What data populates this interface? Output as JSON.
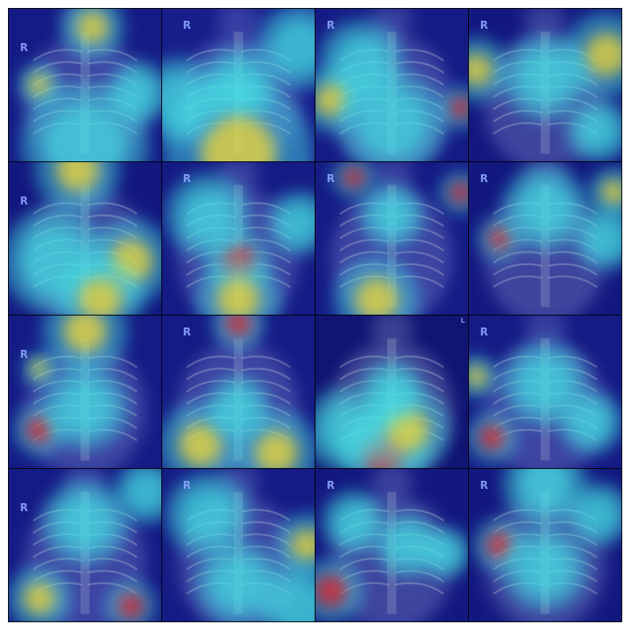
{
  "palette": {
    "background": "#ffffff",
    "grid_border": "#000000",
    "deep_blue": "#0a0a5a",
    "blue": "#2b3bd6",
    "cyan": "#46e6e6",
    "yellow": "#e6d23a",
    "red": "#e0282a",
    "xray": "#b8bfd8"
  },
  "tiles": [
    {
      "id": 1,
      "marker": "R",
      "base": 0.35,
      "hot": [
        [
          0.55,
          0.12,
          0.15,
          "yellow"
        ],
        [
          0.2,
          0.5,
          0.1,
          "yellow"
        ],
        [
          0.85,
          0.55,
          0.15,
          "cyan"
        ],
        [
          0.5,
          0.9,
          0.3,
          "cyan"
        ]
      ]
    },
    {
      "id": 2,
      "marker": "R",
      "base": 0.4,
      "hot": [
        [
          0.5,
          0.5,
          0.18,
          "cyan"
        ],
        [
          0.5,
          0.95,
          0.35,
          "yellow"
        ],
        [
          0.1,
          0.6,
          0.2,
          "cyan"
        ],
        [
          0.9,
          0.25,
          0.2,
          "cyan"
        ]
      ]
    },
    {
      "id": 3,
      "marker": "R",
      "base": 0.35,
      "hot": [
        [
          0.95,
          0.65,
          0.1,
          "red"
        ],
        [
          0.3,
          0.35,
          0.2,
          "cyan"
        ],
        [
          0.1,
          0.6,
          0.15,
          "yellow"
        ],
        [
          0.5,
          0.75,
          0.25,
          "cyan"
        ]
      ]
    },
    {
      "id": 4,
      "marker": "R",
      "base": 0.3,
      "hot": [
        [
          0.9,
          0.3,
          0.2,
          "yellow"
        ],
        [
          0.05,
          0.4,
          0.15,
          "yellow"
        ],
        [
          0.5,
          0.45,
          0.2,
          "cyan"
        ],
        [
          0.85,
          0.8,
          0.15,
          "cyan"
        ]
      ]
    },
    {
      "id": 5,
      "marker": "R",
      "base": 0.3,
      "hot": [
        [
          0.45,
          0.05,
          0.2,
          "yellow"
        ],
        [
          0.8,
          0.65,
          0.2,
          "yellow"
        ],
        [
          0.3,
          0.65,
          0.25,
          "cyan"
        ],
        [
          0.6,
          0.9,
          0.2,
          "yellow"
        ]
      ]
    },
    {
      "id": 6,
      "marker": "R",
      "base": 0.35,
      "hot": [
        [
          0.5,
          0.65,
          0.15,
          "red"
        ],
        [
          0.5,
          0.9,
          0.2,
          "yellow"
        ],
        [
          0.3,
          0.35,
          0.2,
          "cyan"
        ],
        [
          0.9,
          0.4,
          0.15,
          "cyan"
        ]
      ]
    },
    {
      "id": 7,
      "marker": "R",
      "base": 0.35,
      "hot": [
        [
          0.25,
          0.1,
          0.1,
          "red"
        ],
        [
          0.95,
          0.2,
          0.1,
          "red"
        ],
        [
          0.5,
          0.35,
          0.15,
          "cyan"
        ],
        [
          0.4,
          0.9,
          0.2,
          "yellow"
        ]
      ]
    },
    {
      "id": 8,
      "marker": "R",
      "base": 0.3,
      "hot": [
        [
          0.2,
          0.5,
          0.1,
          "red"
        ],
        [
          0.95,
          0.2,
          0.12,
          "yellow"
        ],
        [
          0.5,
          0.3,
          0.2,
          "cyan"
        ],
        [
          0.9,
          0.5,
          0.15,
          "cyan"
        ]
      ]
    },
    {
      "id": 9,
      "marker": "R",
      "base": 0.35,
      "hot": [
        [
          0.2,
          0.35,
          0.08,
          "yellow"
        ],
        [
          0.2,
          0.75,
          0.12,
          "red"
        ],
        [
          0.5,
          0.1,
          0.2,
          "yellow"
        ],
        [
          0.5,
          0.6,
          0.2,
          "cyan"
        ]
      ]
    },
    {
      "id": 10,
      "marker": "R",
      "base": 0.35,
      "hot": [
        [
          0.5,
          0.05,
          0.12,
          "red"
        ],
        [
          0.75,
          0.9,
          0.2,
          "yellow"
        ],
        [
          0.25,
          0.85,
          0.2,
          "yellow"
        ],
        [
          0.5,
          0.6,
          0.15,
          "cyan"
        ]
      ]
    },
    {
      "id": 11,
      "marker": "L",
      "base": 0.2,
      "hot": [
        [
          0.45,
          0.9,
          0.2,
          "red"
        ],
        [
          0.6,
          0.75,
          0.2,
          "yellow"
        ],
        [
          0.2,
          0.75,
          0.2,
          "cyan"
        ],
        [
          0.5,
          0.5,
          0.15,
          "cyan"
        ]
      ]
    },
    {
      "id": 12,
      "marker": "R",
      "base": 0.35,
      "hot": [
        [
          0.15,
          0.8,
          0.12,
          "red"
        ],
        [
          0.05,
          0.4,
          0.1,
          "yellow"
        ],
        [
          0.5,
          0.45,
          0.2,
          "cyan"
        ],
        [
          0.8,
          0.7,
          0.15,
          "cyan"
        ]
      ]
    },
    {
      "id": 13,
      "marker": "R",
      "base": 0.35,
      "hot": [
        [
          0.8,
          0.9,
          0.12,
          "red"
        ],
        [
          0.2,
          0.85,
          0.15,
          "yellow"
        ],
        [
          0.5,
          0.35,
          0.2,
          "cyan"
        ],
        [
          0.9,
          0.15,
          0.15,
          "cyan"
        ]
      ]
    },
    {
      "id": 14,
      "marker": "R",
      "base": 0.35,
      "hot": [
        [
          0.95,
          0.5,
          0.15,
          "yellow"
        ],
        [
          0.5,
          0.75,
          0.2,
          "cyan"
        ],
        [
          0.3,
          0.3,
          0.2,
          "cyan"
        ],
        [
          0.9,
          0.9,
          0.2,
          "cyan"
        ]
      ]
    },
    {
      "id": 15,
      "marker": "R",
      "base": 0.3,
      "hot": [
        [
          0.1,
          0.8,
          0.15,
          "red"
        ],
        [
          0.6,
          0.5,
          0.15,
          "cyan"
        ],
        [
          0.25,
          0.35,
          0.15,
          "cyan"
        ],
        [
          0.85,
          0.55,
          0.12,
          "cyan"
        ]
      ]
    },
    {
      "id": 16,
      "marker": "R",
      "base": 0.3,
      "hot": [
        [
          0.2,
          0.5,
          0.12,
          "red"
        ],
        [
          0.5,
          0.1,
          0.2,
          "cyan"
        ],
        [
          0.5,
          0.65,
          0.2,
          "cyan"
        ],
        [
          0.85,
          0.3,
          0.15,
          "cyan"
        ]
      ]
    }
  ]
}
